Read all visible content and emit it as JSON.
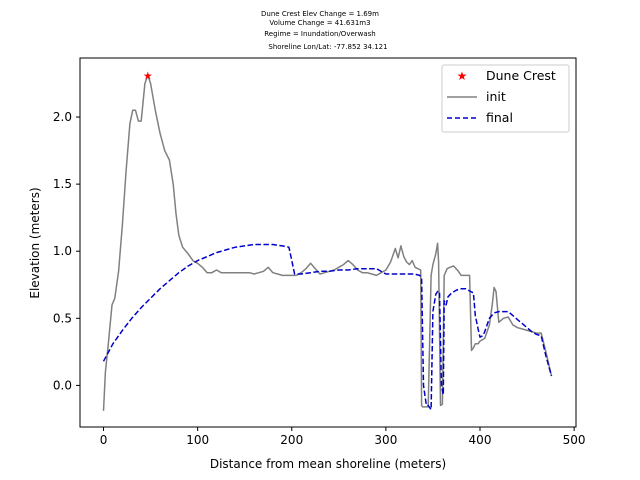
{
  "chart_data": {
    "type": "line",
    "title_lines": [
      "Dune Crest Elev Change = 1.69m",
      "Volume Change = 41.631m3",
      "Regime = Inundation/Overwash",
      "Shoreline Lon/Lat: -77.852 34.121"
    ],
    "xlabel": "Distance from mean shoreline (meters)",
    "ylabel": "Elevation (meters)",
    "xlim": [
      -25,
      502
    ],
    "ylim": [
      -0.31,
      2.44
    ],
    "xticks": [
      0,
      100,
      200,
      300,
      400,
      500
    ],
    "yticks": [
      0.0,
      0.5,
      1.0,
      1.5,
      2.0
    ],
    "ytick_labels": [
      "0.0",
      "0.5",
      "1.0",
      "1.5",
      "2.0"
    ],
    "legend_position": "top-right",
    "legend": [
      "Dune Crest",
      "init",
      "final"
    ],
    "dune_crest": {
      "name": "Dune Crest",
      "color": "#ff0000",
      "x": 47,
      "y": 2.31
    },
    "series": [
      {
        "name": "init",
        "color": "#808080",
        "style": "solid",
        "x": [
          0,
          2,
          5,
          9,
          12,
          16,
          20,
          24,
          28,
          31,
          34,
          37,
          40,
          44,
          47,
          50,
          55,
          60,
          65,
          70,
          74,
          77,
          80,
          84,
          90,
          95,
          100,
          105,
          110,
          115,
          120,
          125,
          130,
          135,
          140,
          145,
          150,
          155,
          160,
          165,
          170,
          175,
          180,
          185,
          190,
          195,
          200,
          205,
          210,
          215,
          220,
          225,
          230,
          235,
          240,
          245,
          250,
          255,
          260,
          265,
          270,
          275,
          280,
          285,
          290,
          295,
          300,
          305,
          310,
          313,
          316,
          319,
          322,
          325,
          328,
          331,
          334,
          337,
          338,
          339,
          340,
          345,
          348,
          350,
          353,
          355,
          356,
          358,
          360,
          362,
          365,
          368,
          372,
          377,
          380,
          385,
          389,
          391,
          393,
          395,
          398,
          400,
          405,
          410,
          413,
          415,
          417,
          420,
          425,
          430,
          435,
          440,
          445,
          450,
          455,
          460,
          465,
          470,
          476
        ],
        "y": [
          -0.19,
          0.1,
          0.3,
          0.6,
          0.65,
          0.85,
          1.2,
          1.6,
          1.95,
          2.05,
          2.05,
          1.97,
          1.97,
          2.25,
          2.31,
          2.25,
          2.05,
          1.88,
          1.75,
          1.68,
          1.5,
          1.28,
          1.12,
          1.03,
          0.98,
          0.93,
          0.91,
          0.88,
          0.84,
          0.84,
          0.86,
          0.84,
          0.84,
          0.84,
          0.84,
          0.84,
          0.84,
          0.84,
          0.83,
          0.84,
          0.85,
          0.88,
          0.84,
          0.83,
          0.82,
          0.82,
          0.82,
          0.82,
          0.84,
          0.87,
          0.91,
          0.87,
          0.83,
          0.84,
          0.85,
          0.86,
          0.88,
          0.9,
          0.93,
          0.9,
          0.86,
          0.84,
          0.84,
          0.83,
          0.82,
          0.84,
          0.86,
          0.92,
          1.02,
          0.95,
          1.04,
          0.96,
          0.92,
          0.9,
          0.93,
          0.88,
          0.87,
          0.86,
          -0.15,
          -0.16,
          -0.16,
          -0.16,
          0.82,
          0.9,
          0.98,
          1.06,
          0.92,
          -0.15,
          -0.14,
          0.82,
          0.87,
          0.88,
          0.89,
          0.85,
          0.82,
          0.82,
          0.82,
          0.26,
          0.28,
          0.31,
          0.31,
          0.33,
          0.35,
          0.45,
          0.6,
          0.73,
          0.7,
          0.47,
          0.5,
          0.51,
          0.45,
          0.43,
          0.42,
          0.41,
          0.4,
          0.39,
          0.39,
          0.25,
          0.07
        ],
        "y_display": [
          -0.19,
          0.1,
          0.3,
          0.6,
          0.65,
          0.85,
          1.2,
          1.6,
          1.95,
          2.05,
          2.05,
          1.97,
          1.97,
          2.25,
          2.31,
          2.25,
          2.05,
          1.88,
          1.75,
          1.68,
          1.5,
          1.28,
          1.12,
          1.03,
          0.98,
          0.93,
          0.91,
          0.88,
          0.84,
          0.84,
          0.86,
          0.84,
          0.84,
          0.84,
          0.84,
          0.84,
          0.84,
          0.84,
          0.83,
          0.84,
          0.85,
          0.88,
          0.84,
          0.83,
          0.82,
          0.82,
          0.82,
          0.82,
          0.84,
          0.87,
          0.91,
          0.87,
          0.83,
          0.84,
          0.85,
          0.86,
          0.88,
          0.9,
          0.93,
          0.9,
          0.86,
          0.84,
          0.84,
          0.83,
          0.82,
          0.84,
          0.86,
          0.92,
          1.02,
          0.95,
          1.04,
          0.96,
          0.92,
          0.9,
          0.93,
          0.88,
          0.87,
          0.86,
          -0.15,
          -0.16,
          -0.16,
          -0.16,
          0.82,
          0.9,
          0.98,
          1.06,
          0.92,
          -0.15,
          -0.14,
          0.82,
          0.87,
          0.88,
          0.89,
          0.85,
          0.82,
          0.82,
          0.82,
          0.26,
          0.28,
          0.31,
          0.31,
          0.33,
          0.35,
          0.45,
          0.6,
          0.73,
          0.7,
          0.47,
          0.5,
          0.51,
          0.45,
          0.43,
          0.42,
          0.41,
          0.4,
          0.39,
          0.39,
          0.25,
          0.07
        ]
      },
      {
        "name": "final",
        "color": "#0000cc",
        "style": "dashed",
        "x": [
          0,
          10,
          20,
          30,
          40,
          50,
          60,
          70,
          80,
          90,
          100,
          110,
          120,
          130,
          140,
          150,
          160,
          170,
          180,
          190,
          197,
          200,
          203,
          210,
          220,
          230,
          240,
          250,
          260,
          270,
          280,
          290,
          300,
          310,
          320,
          330,
          336,
          338,
          340,
          343,
          345,
          348,
          350,
          353,
          355,
          357,
          359,
          361,
          362,
          364,
          366,
          370,
          375,
          380,
          385,
          390,
          393,
          395,
          398,
          400,
          403,
          405,
          410,
          415,
          420,
          425,
          430,
          435,
          440,
          445,
          450,
          455,
          460,
          465,
          470,
          476
        ],
        "y": [
          0.18,
          0.31,
          0.41,
          0.5,
          0.58,
          0.65,
          0.72,
          0.78,
          0.84,
          0.89,
          0.93,
          0.96,
          0.99,
          1.01,
          1.03,
          1.04,
          1.05,
          1.05,
          1.05,
          1.04,
          1.03,
          0.93,
          0.83,
          0.83,
          0.84,
          0.85,
          0.85,
          0.86,
          0.86,
          0.87,
          0.87,
          0.87,
          0.83,
          0.83,
          0.83,
          0.83,
          0.82,
          0.8,
          0.0,
          -0.15,
          -0.15,
          -0.18,
          0.55,
          0.68,
          0.7,
          0.7,
          0.0,
          -0.07,
          0.63,
          0.6,
          0.66,
          0.69,
          0.71,
          0.72,
          0.72,
          0.7,
          0.69,
          0.52,
          0.42,
          0.36,
          0.37,
          0.4,
          0.5,
          0.54,
          0.55,
          0.55,
          0.55,
          0.52,
          0.49,
          0.46,
          0.43,
          0.4,
          0.38,
          0.37,
          0.22,
          0.07
        ]
      }
    ]
  }
}
